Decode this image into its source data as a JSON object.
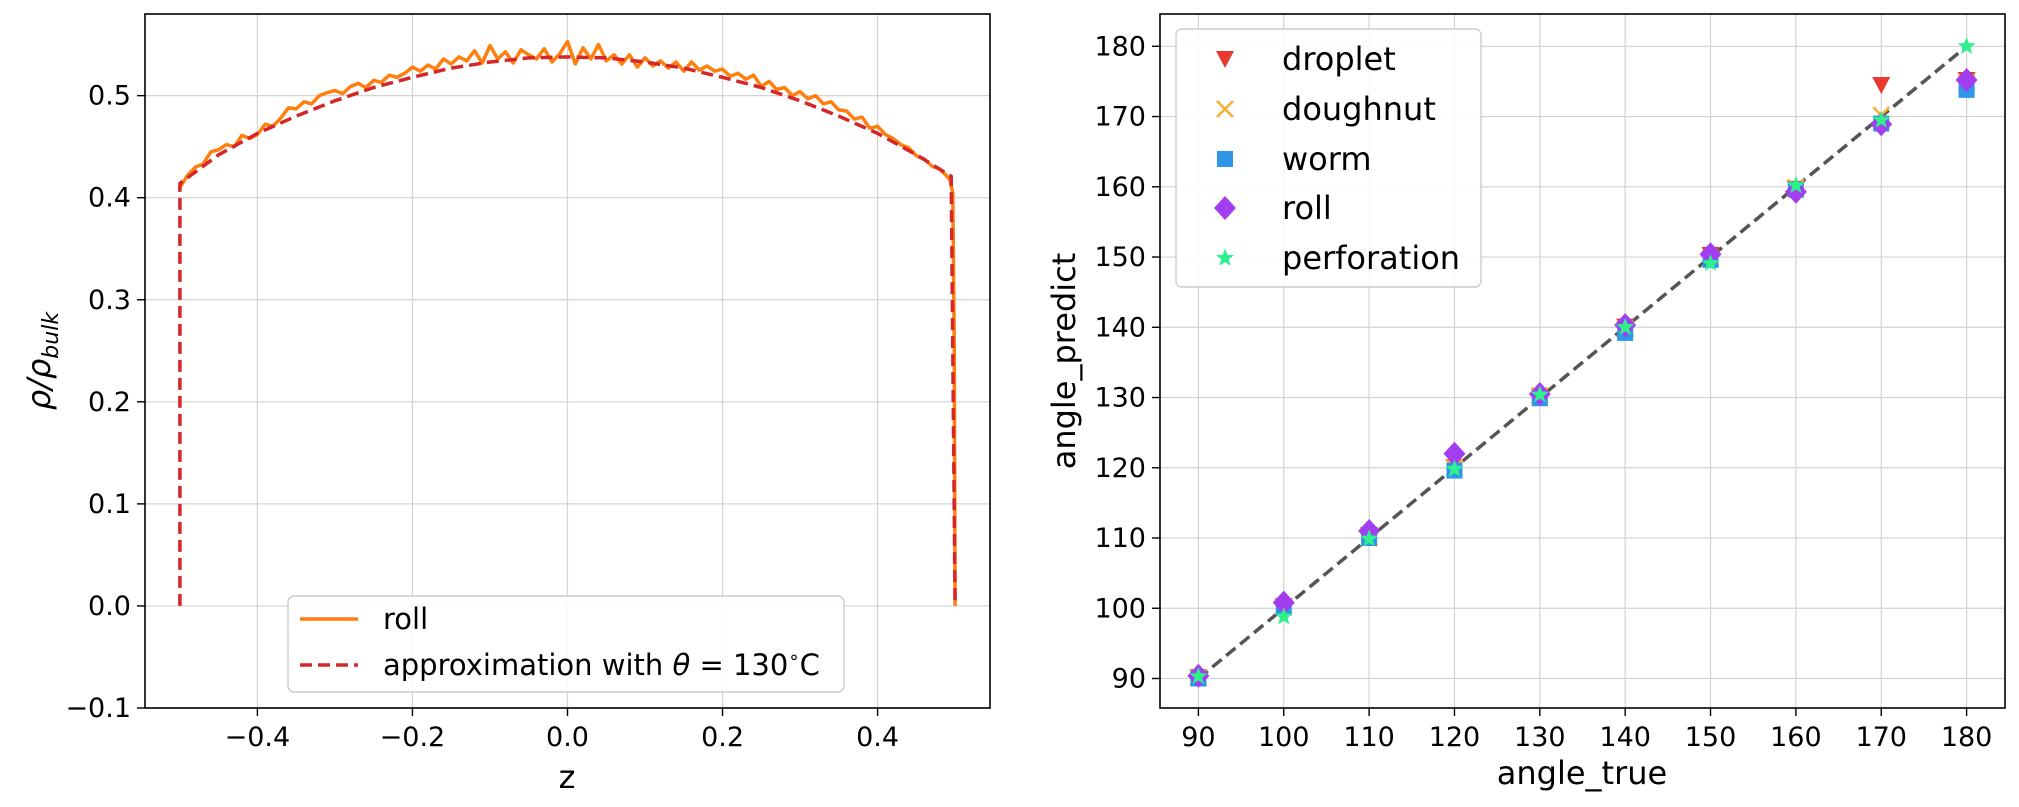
{
  "chart_data": [
    {
      "type": "line",
      "xlabel": "z",
      "ylabel": "ρ/ρ_bulk",
      "ylabel_main": "ρ/ρ",
      "ylabel_sub": "bulk",
      "xlim": [
        -0.545,
        0.545
      ],
      "ylim": [
        -0.1,
        0.58
      ],
      "xticks": [
        -0.4,
        -0.2,
        0.0,
        0.2,
        0.4
      ],
      "xtick_labels": [
        "−0.4",
        "−0.2",
        "0.0",
        "0.2",
        "0.4"
      ],
      "yticks": [
        -0.1,
        0.0,
        0.1,
        0.2,
        0.3,
        0.4,
        0.5
      ],
      "ytick_labels": [
        "−0.1",
        "0.0",
        "0.1",
        "0.2",
        "0.3",
        "0.4",
        "0.5"
      ],
      "grid": true,
      "legend_position": "lower-center",
      "series": [
        {
          "name": "roll",
          "color": "#ff7f0e",
          "style": "solid",
          "points": [
            [
              -0.5,
              0.41
            ],
            [
              -0.49,
              0.422
            ],
            [
              -0.48,
              0.43
            ],
            [
              -0.47,
              0.433
            ],
            [
              -0.46,
              0.445
            ],
            [
              -0.45,
              0.447
            ],
            [
              -0.44,
              0.452
            ],
            [
              -0.43,
              0.45
            ],
            [
              -0.42,
              0.461
            ],
            [
              -0.41,
              0.458
            ],
            [
              -0.4,
              0.462
            ],
            [
              -0.39,
              0.472
            ],
            [
              -0.38,
              0.47
            ],
            [
              -0.37,
              0.478
            ],
            [
              -0.36,
              0.488
            ],
            [
              -0.35,
              0.487
            ],
            [
              -0.34,
              0.494
            ],
            [
              -0.33,
              0.492
            ],
            [
              -0.32,
              0.5
            ],
            [
              -0.31,
              0.503
            ],
            [
              -0.3,
              0.505
            ],
            [
              -0.29,
              0.502
            ],
            [
              -0.28,
              0.509
            ],
            [
              -0.27,
              0.512
            ],
            [
              -0.26,
              0.508
            ],
            [
              -0.25,
              0.515
            ],
            [
              -0.24,
              0.513
            ],
            [
              -0.23,
              0.52
            ],
            [
              -0.22,
              0.518
            ],
            [
              -0.21,
              0.522
            ],
            [
              -0.2,
              0.528
            ],
            [
              -0.19,
              0.524
            ],
            [
              -0.18,
              0.53
            ],
            [
              -0.17,
              0.526
            ],
            [
              -0.16,
              0.536
            ],
            [
              -0.15,
              0.531
            ],
            [
              -0.14,
              0.538
            ],
            [
              -0.13,
              0.534
            ],
            [
              -0.12,
              0.544
            ],
            [
              -0.11,
              0.532
            ],
            [
              -0.1,
              0.549
            ],
            [
              -0.09,
              0.536
            ],
            [
              -0.08,
              0.543
            ],
            [
              -0.07,
              0.532
            ],
            [
              -0.06,
              0.545
            ],
            [
              -0.05,
              0.54
            ],
            [
              -0.04,
              0.536
            ],
            [
              -0.03,
              0.546
            ],
            [
              -0.02,
              0.533
            ],
            [
              -0.01,
              0.541
            ],
            [
              0.0,
              0.553
            ],
            [
              0.01,
              0.531
            ],
            [
              0.02,
              0.547
            ],
            [
              0.03,
              0.536
            ],
            [
              0.04,
              0.55
            ],
            [
              0.05,
              0.534
            ],
            [
              0.06,
              0.54
            ],
            [
              0.07,
              0.531
            ],
            [
              0.08,
              0.54
            ],
            [
              0.09,
              0.528
            ],
            [
              0.1,
              0.537
            ],
            [
              0.11,
              0.529
            ],
            [
              0.12,
              0.534
            ],
            [
              0.13,
              0.527
            ],
            [
              0.14,
              0.533
            ],
            [
              0.15,
              0.524
            ],
            [
              0.16,
              0.533
            ],
            [
              0.17,
              0.525
            ],
            [
              0.18,
              0.529
            ],
            [
              0.19,
              0.524
            ],
            [
              0.2,
              0.526
            ],
            [
              0.21,
              0.519
            ],
            [
              0.22,
              0.522
            ],
            [
              0.23,
              0.516
            ],
            [
              0.24,
              0.52
            ],
            [
              0.25,
              0.509
            ],
            [
              0.26,
              0.514
            ],
            [
              0.27,
              0.506
            ],
            [
              0.28,
              0.508
            ],
            [
              0.29,
              0.5
            ],
            [
              0.3,
              0.504
            ],
            [
              0.31,
              0.497
            ],
            [
              0.32,
              0.5
            ],
            [
              0.33,
              0.492
            ],
            [
              0.34,
              0.494
            ],
            [
              0.35,
              0.486
            ],
            [
              0.36,
              0.485
            ],
            [
              0.37,
              0.477
            ],
            [
              0.38,
              0.479
            ],
            [
              0.39,
              0.468
            ],
            [
              0.4,
              0.47
            ],
            [
              0.41,
              0.462
            ],
            [
              0.42,
              0.458
            ],
            [
              0.43,
              0.452
            ],
            [
              0.44,
              0.449
            ],
            [
              0.45,
              0.441
            ],
            [
              0.46,
              0.438
            ],
            [
              0.47,
              0.431
            ],
            [
              0.48,
              0.428
            ],
            [
              0.487,
              0.423
            ],
            [
              0.493,
              0.418
            ],
            [
              0.497,
              0.405
            ],
            [
              0.499,
              0.25
            ],
            [
              0.5,
              0.0
            ]
          ]
        },
        {
          "name": "approximation with θ = 130°C",
          "legend_prefix": "approximation with ",
          "legend_theta": "θ",
          "legend_suffix": " = 130",
          "legend_degree": "∘",
          "legend_unit": "C",
          "color": "#d62728",
          "style": "dashed",
          "points": [
            [
              -0.5,
              0.0
            ],
            [
              -0.5,
              0.414
            ],
            [
              -0.45,
              0.442
            ],
            [
              -0.4,
              0.463
            ],
            [
              -0.35,
              0.48
            ],
            [
              -0.3,
              0.495
            ],
            [
              -0.25,
              0.508
            ],
            [
              -0.2,
              0.518
            ],
            [
              -0.15,
              0.527
            ],
            [
              -0.1,
              0.533
            ],
            [
              -0.05,
              0.537
            ],
            [
              0.0,
              0.538
            ],
            [
              0.05,
              0.537
            ],
            [
              0.1,
              0.533
            ],
            [
              0.15,
              0.527
            ],
            [
              0.2,
              0.518
            ],
            [
              0.25,
              0.508
            ],
            [
              0.3,
              0.495
            ],
            [
              0.35,
              0.48
            ],
            [
              0.4,
              0.463
            ],
            [
              0.45,
              0.442
            ],
            [
              0.495,
              0.421
            ],
            [
              0.5,
              0.0
            ]
          ]
        }
      ]
    },
    {
      "type": "scatter",
      "xlabel": "angle_true",
      "ylabel": "angle_predict",
      "xlim": [
        85.5,
        184.5
      ],
      "ylim": [
        85.8,
        184.6
      ],
      "xticks": [
        90,
        100,
        110,
        120,
        130,
        140,
        150,
        160,
        170,
        180
      ],
      "yticks": [
        90,
        100,
        110,
        120,
        130,
        140,
        150,
        160,
        170,
        180
      ],
      "grid": true,
      "legend_position": "top-left",
      "reference_line": {
        "from": [
          90,
          90
        ],
        "to": [
          180,
          180
        ],
        "style": "dashed",
        "color": "#555555"
      },
      "series": [
        {
          "name": "droplet",
          "marker": "triangle-down",
          "color": "#e8392e",
          "x": [
            90,
            100,
            110,
            120,
            130,
            140,
            150,
            160,
            170,
            180
          ],
          "y": [
            90.2,
            100.3,
            110.4,
            120.1,
            130.2,
            140.1,
            150.3,
            159.7,
            174.5,
            175.2
          ]
        },
        {
          "name": "doughnut",
          "marker": "x",
          "color": "#f5b032",
          "x": [
            90,
            100,
            110,
            120,
            130,
            140,
            150,
            160,
            170,
            180
          ],
          "y": [
            90.1,
            100.2,
            110.0,
            120.0,
            130.3,
            139.8,
            149.8,
            159.9,
            170.2,
            174.8
          ]
        },
        {
          "name": "worm",
          "marker": "square",
          "color": "#2e96e8",
          "x": [
            90,
            100,
            110,
            120,
            130,
            140,
            150,
            160,
            170,
            180
          ],
          "y": [
            90.0,
            100.1,
            110.0,
            119.6,
            129.9,
            139.2,
            149.6,
            159.6,
            169.0,
            173.8
          ]
        },
        {
          "name": "roll",
          "marker": "diamond",
          "color": "#a23ef0",
          "x": [
            90,
            100,
            110,
            120,
            130,
            140,
            150,
            160,
            170,
            180
          ],
          "y": [
            90.4,
            100.8,
            111.0,
            122.0,
            130.5,
            140.3,
            150.4,
            159.3,
            168.9,
            175.2
          ]
        },
        {
          "name": "perforation",
          "marker": "star",
          "color": "#2ef08c",
          "x": [
            90,
            100,
            110,
            120,
            130,
            140,
            150,
            160,
            170,
            180
          ],
          "y": [
            90.3,
            98.8,
            109.9,
            119.8,
            130.4,
            140.0,
            149.1,
            160.2,
            169.5,
            180.0
          ]
        }
      ]
    }
  ]
}
